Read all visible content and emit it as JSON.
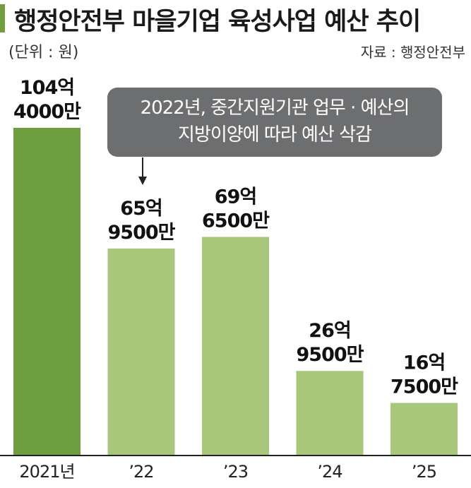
{
  "header": {
    "title": "행정안전부 마을기업 육성사업 예산 추이",
    "unit": "(단위 : 원)",
    "source": "자료 : 행정안전부"
  },
  "annotation": {
    "line1": "2022년, 중간지원기관 업무 · 예산의",
    "line2": "지방이양에 따라 예산 삭감"
  },
  "colors": {
    "highlight_bar": "#6f9e3f",
    "bar": "#a9c77a",
    "annotation_bg": "#6d6e70"
  },
  "chart_data": {
    "type": "bar",
    "categories": [
      "2021년",
      "’22",
      "’23",
      "’24",
      "’25"
    ],
    "values": [
      10440000000,
      6595000000,
      6965000000,
      2695000000,
      1675000000
    ],
    "value_labels": [
      [
        "104억",
        "4000만"
      ],
      [
        "65억",
        "9500만"
      ],
      [
        "69억",
        "6500만"
      ],
      [
        "26억",
        "9500만"
      ],
      [
        "16억",
        "7500만"
      ]
    ],
    "title": "행정안전부 마을기업 육성사업 예산 추이",
    "xlabel": "",
    "ylabel": "",
    "ylim": [
      0,
      10440000000
    ],
    "grid": false,
    "highlight_index": 0
  }
}
